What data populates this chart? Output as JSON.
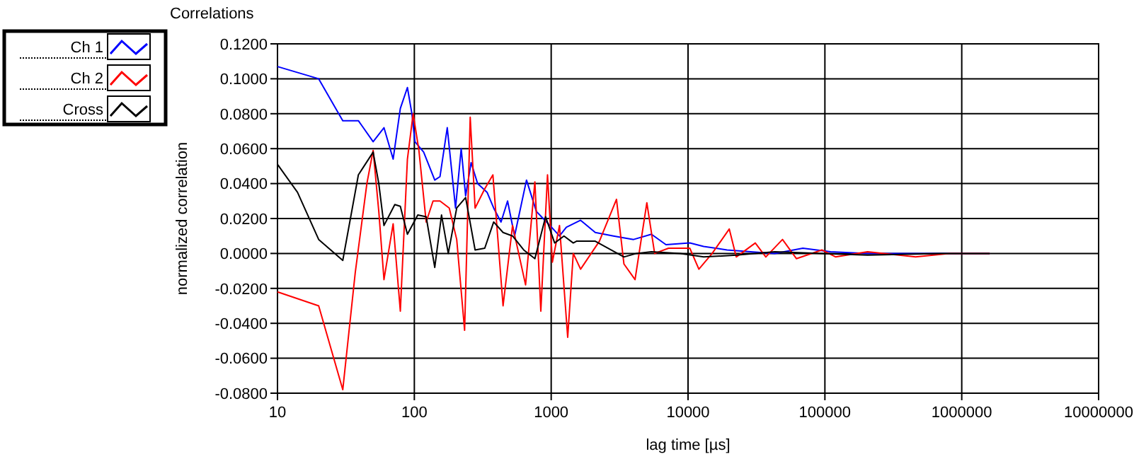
{
  "chart_data": {
    "type": "line",
    "title": "Correlations",
    "xlabel": "lag time [µs]",
    "ylabel": "normalized correlation",
    "log": "x",
    "grid": true,
    "legend": "top left",
    "marker": "none",
    "line_style": "solid",
    "xlim": [
      10,
      10000000
    ],
    "xticks": [
      10,
      100,
      1000,
      10000,
      100000,
      1000000,
      10000000
    ],
    "ylim": [
      -0.08,
      0.12
    ],
    "yticks": [
      {
        "value": -0.08,
        "label": "-0.0800"
      },
      {
        "value": -0.06,
        "label": "-0.0600"
      },
      {
        "value": -0.04,
        "label": "-0.0400"
      },
      {
        "value": -0.02,
        "label": "-0.0200"
      },
      {
        "value": 0,
        "label": "0.0000"
      },
      {
        "value": 0.02,
        "label": "0.0200"
      },
      {
        "value": 0.04,
        "label": "0.0400"
      },
      {
        "value": 0.06,
        "label": "0.0600"
      },
      {
        "value": 0.08,
        "label": "0.0800"
      },
      {
        "value": 0.1,
        "label": "0.1000"
      },
      {
        "value": 0.12,
        "label": "0.1200"
      }
    ],
    "series": [
      {
        "name": "Ch 1",
        "color": "#0000ff",
        "x": [
          10,
          20,
          30,
          39,
          50,
          60,
          70,
          79,
          89,
          96,
          101,
          117,
          141,
          154,
          174,
          200,
          220,
          237,
          260,
          290,
          340,
          380,
          430,
          480,
          540,
          660,
          780,
          980,
          1150,
          1290,
          1640,
          2100,
          2850,
          4000,
          5400,
          6900,
          10300,
          13000,
          19300,
          28600,
          43000,
          69000,
          110000,
          205000,
          460000,
          1030000,
          1600000
        ],
        "values": [
          0.107,
          0.1,
          0.076,
          0.076,
          0.064,
          0.072,
          0.054,
          0.083,
          0.095,
          0.08,
          0.064,
          0.058,
          0.042,
          0.044,
          0.072,
          0.026,
          0.06,
          0.033,
          0.052,
          0.04,
          0.035,
          0.026,
          0.018,
          0.03,
          0.01,
          0.042,
          0.024,
          0.016,
          0.01,
          0.015,
          0.019,
          0.012,
          0.01,
          0.008,
          0.011,
          0.005,
          0.006,
          0.004,
          0.002,
          0.001,
          0,
          0.003,
          0.001,
          0,
          0,
          0,
          0
        ]
      },
      {
        "name": "Ch 2",
        "color": "#ff0000",
        "x": [
          10,
          20,
          30,
          37,
          45,
          50,
          55,
          60,
          70,
          79,
          89,
          98,
          108,
          122,
          137,
          154,
          180,
          204,
          233,
          256,
          278,
          327,
          375,
          445,
          522,
          650,
          760,
          840,
          940,
          1020,
          1150,
          1320,
          1450,
          1640,
          2250,
          3000,
          3400,
          4100,
          5000,
          5700,
          7200,
          10300,
          12000,
          15000,
          20000,
          22500,
          31000,
          37000,
          49000,
          62000,
          95000,
          120000,
          205000,
          460000,
          810000,
          1600000
        ],
        "values": [
          -0.022,
          -0.03,
          -0.078,
          -0.011,
          0.04,
          0.059,
          0.024,
          -0.015,
          0.017,
          -0.033,
          0.054,
          0.08,
          0.059,
          0.018,
          0.03,
          0.03,
          0.026,
          0.008,
          -0.044,
          0.078,
          0.026,
          0.037,
          0.045,
          -0.03,
          0.016,
          -0.018,
          0.041,
          -0.033,
          0.045,
          -0.005,
          0.016,
          -0.048,
          0,
          -0.009,
          0.007,
          0.031,
          -0.006,
          -0.015,
          0.029,
          0,
          0.003,
          0.003,
          -0.009,
          0,
          0.014,
          -0.002,
          0.006,
          -0.002,
          0.008,
          -0.003,
          0.002,
          -0.002,
          0.001,
          -0.002,
          0,
          0
        ]
      },
      {
        "name": "Cross",
        "color": "#000000",
        "x": [
          10,
          14,
          20,
          30,
          39,
          50,
          55,
          60,
          72,
          79,
          89,
          106,
          122,
          141,
          158,
          177,
          204,
          237,
          278,
          327,
          380,
          445,
          522,
          630,
          760,
          910,
          1060,
          1240,
          1450,
          1530,
          2100,
          3400,
          4200,
          5400,
          8800,
          13000,
          22500,
          43000,
          95000,
          205000,
          700000,
          1600000
        ],
        "values": [
          0.051,
          0.035,
          0.008,
          -0.004,
          0.045,
          0.058,
          0.04,
          0.016,
          0.028,
          0.027,
          0.011,
          0.022,
          0.021,
          -0.008,
          0.022,
          0,
          0.026,
          0.032,
          0.002,
          0.003,
          0.018,
          0.012,
          0.01,
          0.002,
          -0.003,
          0.021,
          0.006,
          0.01,
          0.006,
          0.007,
          0.007,
          -0.002,
          0,
          0.001,
          0,
          -0.002,
          -0.001,
          0.001,
          0,
          -0.001,
          0,
          0
        ]
      }
    ]
  }
}
